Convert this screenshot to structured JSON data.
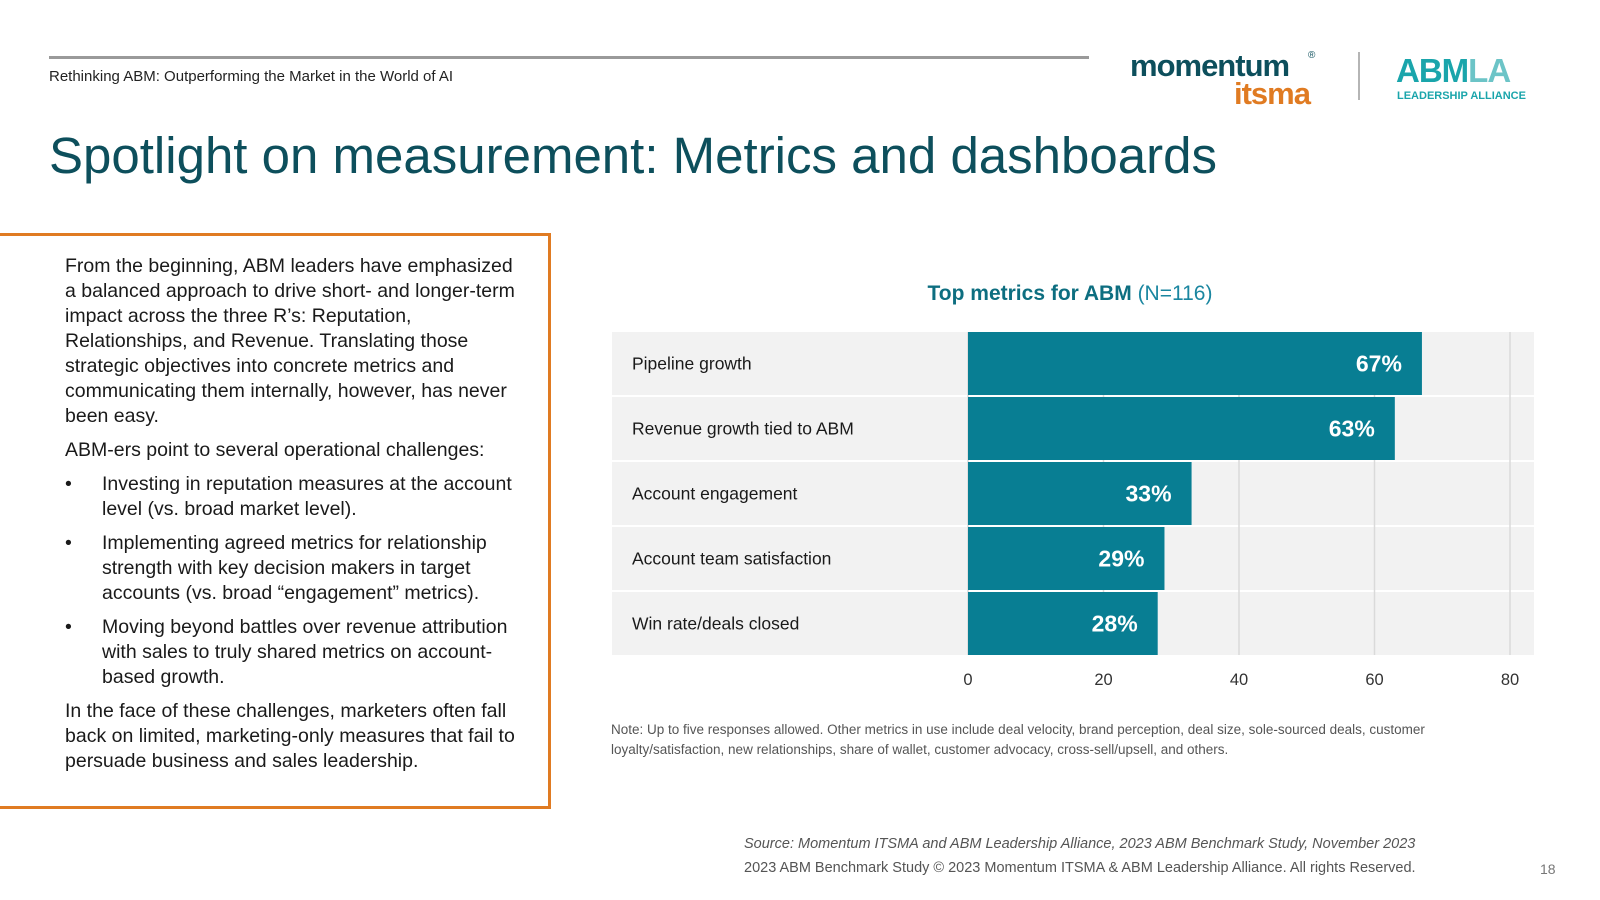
{
  "header": {
    "doc_title": "Rethinking ABM: Outperforming the Market in the World of AI",
    "logo_momentum_line1": "momentum",
    "logo_momentum_reg": "®",
    "logo_momentum_line2": "itsma",
    "logo_abmla_abm": "ABM",
    "logo_abmla_la": "LA",
    "logo_abmla_sub": "LEADERSHIP ALLIANCE"
  },
  "page_title": "Spotlight on measurement: Metrics and dashboards",
  "body": {
    "intro": "From the beginning, ABM leaders have emphasized a balanced approach to drive short- and longer-term impact across the three R’s: Reputation, Relationships, and Revenue. Translating those strategic objectives into concrete metrics and communicating them internally, however, has never been easy.",
    "challenges_lead": "ABM-ers point to several operational challenges:",
    "bullet_char": "•",
    "bullets": [
      "Investing in reputation measures at the account level (vs. broad market level).",
      "Implementing agreed metrics for relationship strength with key decision makers in target accounts (vs. broad “engagement” metrics).",
      "Moving beyond battles over revenue attribution with sales to truly shared metrics on account-based growth."
    ],
    "closing": "In the face of these challenges, marketers often fall back on limited, marketing-only measures that fail to persuade business and sales leadership."
  },
  "chart_data": {
    "type": "bar",
    "orientation": "horizontal",
    "title": "Top metrics for ABM",
    "title_suffix": "(N=116)",
    "categories": [
      "Pipeline growth",
      "Revenue growth tied to ABM",
      "Account engagement",
      "Account team satisfaction",
      "Win rate/deals closed"
    ],
    "values": [
      67,
      63,
      33,
      29,
      28
    ],
    "value_labels": [
      "67%",
      "63%",
      "33%",
      "29%",
      "28%"
    ],
    "xlim": [
      0,
      80
    ],
    "xticks": [
      0,
      20,
      40,
      60,
      80
    ],
    "xlabel": "",
    "ylabel": "",
    "grid": true,
    "bar_color": "#087e93",
    "row_bg_color": "#f2f2f2"
  },
  "note": "Note: Up to five responses allowed. Other metrics in use include deal velocity, brand perception, deal size, sole-sourced deals, customer loyalty/satisfaction, new relationships, share of wallet, customer advocacy, cross-sell/upsell, and others.",
  "footer": {
    "source": "Source: Momentum ITSMA and ABM Leadership Alliance, 2023 ABM Benchmark Study, November 2023",
    "copyright": "2023 ABM Benchmark Study © 2023 Momentum ITSMA & ABM Leadership Alliance. All rights Reserved.",
    "page_number": "18"
  }
}
